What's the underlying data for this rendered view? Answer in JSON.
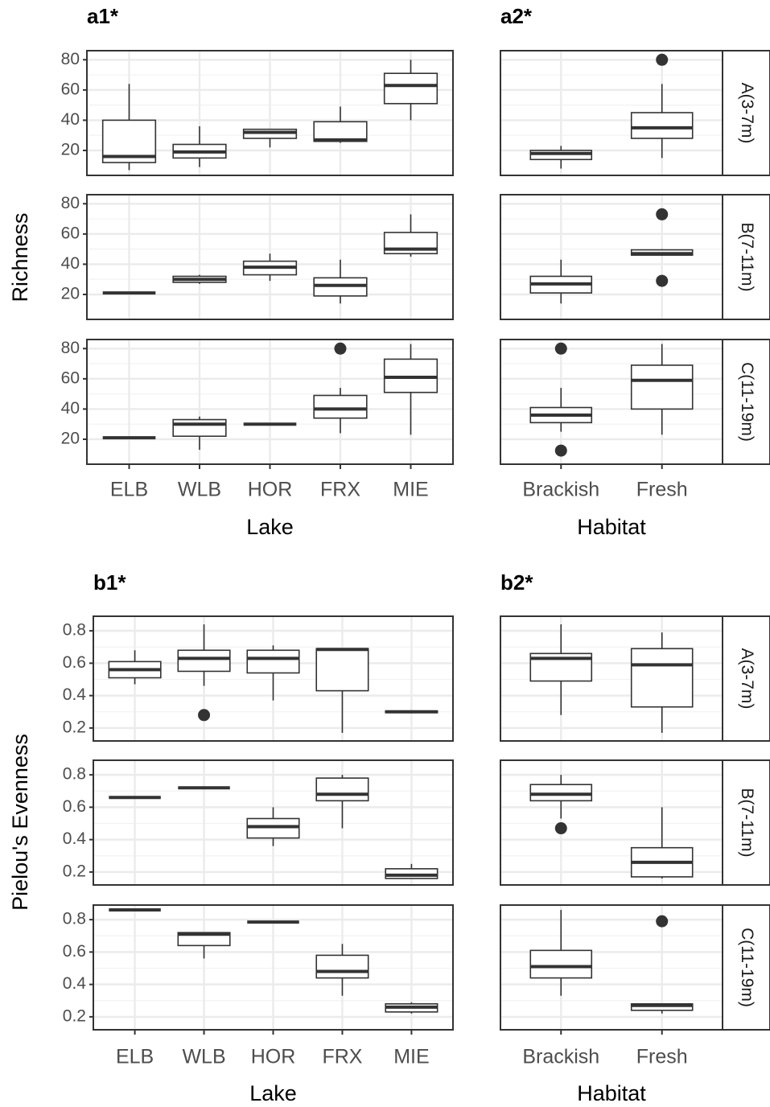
{
  "chart_data": [
    {
      "type": "box",
      "ylabel": "Richness",
      "ylim": [
        3.5,
        86
      ],
      "yticks": [
        20,
        40,
        60,
        80
      ],
      "grid": true,
      "color": "#333333",
      "facets": [
        "A(3-7m)",
        "B(7-11m)",
        "C(11-19m)"
      ],
      "panels": [
        {
          "title": "a1*",
          "xlabel": "Lake",
          "categories": [
            "ELB",
            "WLB",
            "HOR",
            "FRX",
            "MIE"
          ],
          "boxes": [
            [
              {
                "min": 7,
                "q1": 12,
                "median": 16,
                "q3": 40,
                "max": 64
              },
              {
                "min": 9,
                "q1": 15,
                "median": 19,
                "q3": 24,
                "max": 36
              },
              {
                "min": 22,
                "q1": 28,
                "median": 32,
                "q3": 34,
                "max": 34
              },
              {
                "min": 25,
                "q1": 26,
                "median": 27,
                "q3": 39,
                "max": 49
              },
              {
                "min": 40,
                "q1": 51,
                "median": 63,
                "q3": 71,
                "max": 80
              }
            ],
            [
              {
                "min": 21,
                "q1": 21,
                "median": 21,
                "q3": 21,
                "max": 21
              },
              {
                "min": 27,
                "q1": 28,
                "median": 30,
                "q3": 32,
                "max": 33
              },
              {
                "min": 29,
                "q1": 33,
                "median": 38,
                "q3": 42,
                "max": 47
              },
              {
                "min": 14,
                "q1": 19,
                "median": 26,
                "q3": 31,
                "max": 43
              },
              {
                "min": 45,
                "q1": 47,
                "median": 50,
                "q3": 61,
                "max": 73
              }
            ],
            [
              {
                "min": 21,
                "q1": 21,
                "median": 21,
                "q3": 21,
                "max": 21
              },
              {
                "min": 13,
                "q1": 22,
                "median": 30,
                "q3": 33,
                "max": 35
              },
              {
                "min": 30,
                "q1": 30,
                "median": 30,
                "q3": 30,
                "max": 30
              },
              {
                "min": 24,
                "q1": 34,
                "median": 40,
                "q3": 49,
                "max": 54,
                "outliers": [
                  80
                ]
              },
              {
                "min": 23,
                "q1": 51,
                "median": 61,
                "q3": 73,
                "max": 83
              }
            ]
          ]
        },
        {
          "title": "a2*",
          "xlabel": "Habitat",
          "categories": [
            "Brackish",
            "Fresh"
          ],
          "boxes": [
            [
              {
                "min": 8,
                "q1": 14,
                "median": 18,
                "q3": 20,
                "max": 23
              },
              {
                "min": 15,
                "q1": 28,
                "median": 35,
                "q3": 45,
                "max": 64,
                "outliers": [
                  80
                ]
              }
            ],
            [
              {
                "min": 14,
                "q1": 21,
                "median": 27,
                "q3": 32,
                "max": 43
              },
              {
                "min": 45.5,
                "q1": 46,
                "median": 47,
                "q3": 49.5,
                "max": 50,
                "outliers": [
                  73,
                  29
                ]
              }
            ],
            [
              {
                "min": 25,
                "q1": 31,
                "median": 36,
                "q3": 41,
                "max": 54,
                "outliers": [
                  80,
                  12.5
                ]
              },
              {
                "min": 23,
                "q1": 40,
                "median": 59,
                "q3": 69,
                "max": 83
              }
            ]
          ]
        }
      ]
    },
    {
      "type": "box",
      "ylabel": "Pielou's Evenness",
      "ylim": [
        0.12,
        0.89
      ],
      "yticks": [
        0.2,
        0.4,
        0.6,
        0.8
      ],
      "grid": true,
      "color": "#333333",
      "facets": [
        "A(3-7m)",
        "B(7-11m)",
        "C(11-19m)"
      ],
      "panels": [
        {
          "title": "b1*",
          "xlabel": "Lake",
          "categories": [
            "ELB",
            "WLB",
            "HOR",
            "FRX",
            "MIE"
          ],
          "boxes": [
            [
              {
                "min": 0.47,
                "q1": 0.51,
                "median": 0.56,
                "q3": 0.61,
                "max": 0.68
              },
              {
                "min": 0.46,
                "q1": 0.55,
                "median": 0.63,
                "q3": 0.68,
                "max": 0.84,
                "outliers": [
                  0.28
                ]
              },
              {
                "min": 0.37,
                "q1": 0.54,
                "median": 0.63,
                "q3": 0.68,
                "max": 0.71
              },
              {
                "min": 0.17,
                "q1": 0.43,
                "median": 0.685,
                "q3": 0.69,
                "max": 0.69
              },
              {
                "min": 0.29,
                "q1": 0.295,
                "median": 0.3,
                "q3": 0.305,
                "max": 0.31
              }
            ],
            [
              {
                "min": 0.66,
                "q1": 0.66,
                "median": 0.66,
                "q3": 0.66,
                "max": 0.66
              },
              {
                "min": 0.72,
                "q1": 0.72,
                "median": 0.72,
                "q3": 0.72,
                "max": 0.72
              },
              {
                "min": 0.36,
                "q1": 0.41,
                "median": 0.48,
                "q3": 0.53,
                "max": 0.6
              },
              {
                "min": 0.47,
                "q1": 0.64,
                "median": 0.68,
                "q3": 0.78,
                "max": 0.8
              },
              {
                "min": 0.16,
                "q1": 0.16,
                "median": 0.18,
                "q3": 0.22,
                "max": 0.25
              }
            ],
            [
              {
                "min": 0.86,
                "q1": 0.86,
                "median": 0.86,
                "q3": 0.86,
                "max": 0.86
              },
              {
                "min": 0.56,
                "q1": 0.64,
                "median": 0.71,
                "q3": 0.72,
                "max": 0.72
              },
              {
                "min": 0.785,
                "q1": 0.785,
                "median": 0.785,
                "q3": 0.785,
                "max": 0.785
              },
              {
                "min": 0.33,
                "q1": 0.44,
                "median": 0.48,
                "q3": 0.58,
                "max": 0.65
              },
              {
                "min": 0.22,
                "q1": 0.23,
                "median": 0.26,
                "q3": 0.28,
                "max": 0.29
              }
            ]
          ]
        },
        {
          "title": "b2*",
          "xlabel": "Habitat",
          "categories": [
            "Brackish",
            "Fresh"
          ],
          "boxes": [
            [
              {
                "min": 0.28,
                "q1": 0.49,
                "median": 0.63,
                "q3": 0.66,
                "max": 0.84
              },
              {
                "min": 0.17,
                "q1": 0.33,
                "median": 0.59,
                "q3": 0.69,
                "max": 0.79
              }
            ],
            [
              {
                "min": 0.53,
                "q1": 0.64,
                "median": 0.68,
                "q3": 0.74,
                "max": 0.8,
                "outliers": [
                  0.47
                ]
              },
              {
                "min": 0.16,
                "q1": 0.17,
                "median": 0.26,
                "q3": 0.35,
                "max": 0.6
              }
            ],
            [
              {
                "min": 0.33,
                "q1": 0.44,
                "median": 0.51,
                "q3": 0.61,
                "max": 0.86
              },
              {
                "min": 0.22,
                "q1": 0.24,
                "median": 0.27,
                "q3": 0.28,
                "max": 0.28,
                "outliers": [
                  0.79
                ]
              }
            ]
          ]
        }
      ]
    }
  ]
}
